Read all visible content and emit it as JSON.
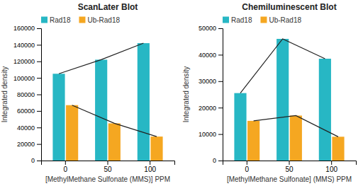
{
  "chart_data": [
    {
      "type": "bar",
      "title": "ScanLater Blot",
      "xlabel": "[MethylMethane Sulfonate (MMS)] PPM",
      "ylabel": "Integrated density",
      "categories": [
        "0",
        "50",
        "100"
      ],
      "series": [
        {
          "name": "Rad18",
          "color": "#27b7c4",
          "line_style": "solid",
          "values": [
            105000,
            122000,
            142000
          ]
        },
        {
          "name": "Ub-Rad18",
          "color": "#f5a721",
          "line_style": "solid",
          "values": [
            67000,
            45000,
            29000
          ]
        }
      ],
      "ylim": [
        0,
        160000
      ],
      "yticks": [
        0,
        20000,
        40000,
        60000,
        80000,
        100000,
        120000,
        140000,
        160000
      ],
      "grid": false,
      "legend": "top"
    },
    {
      "type": "bar",
      "title": "Chemiluminescent Blot",
      "xlabel": "[MethylMethane Sulfonate] (MMS) PPM",
      "ylabel": "Integrated density",
      "categories": [
        "0",
        "50",
        "100"
      ],
      "series": [
        {
          "name": "Rad18",
          "color": "#27b7c4",
          "line_style": "solid",
          "values": [
            25500,
            46000,
            38500
          ]
        },
        {
          "name": "Ub-Rad18",
          "color": "#f5a721",
          "line_style": "solid",
          "values": [
            15000,
            17000,
            9000
          ]
        }
      ],
      "ylim": [
        0,
        50000
      ],
      "yticks": [
        0,
        10000,
        20000,
        30000,
        40000,
        50000
      ],
      "grid": false,
      "legend": "top"
    }
  ]
}
